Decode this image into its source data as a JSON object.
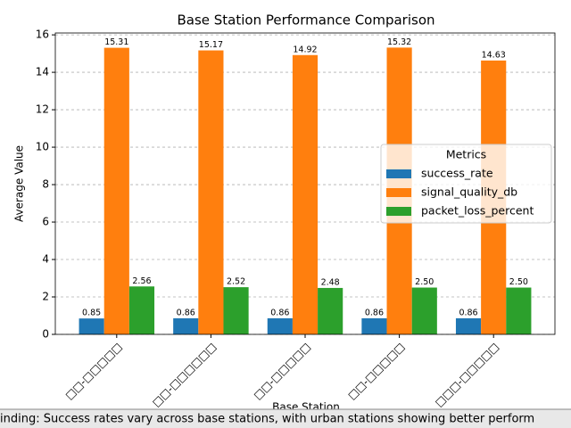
{
  "chart_data": {
    "type": "bar",
    "title": "Base Station Performance Comparison",
    "x_label": "Base Station",
    "y_label": "Average Value",
    "categories": [
      "□□-□□□□□",
      "□□-□□□□□□",
      "□□-□□□□□",
      "□□-□□□□□",
      "□□□-□□□□□"
    ],
    "series": [
      {
        "name": "success_rate",
        "color": "#1f77b4",
        "values": [
          0.85,
          0.86,
          0.86,
          0.86,
          0.86
        ],
        "value_labels": [
          "0.85",
          "0.86",
          "0.86",
          "0.86",
          "0.86"
        ]
      },
      {
        "name": "signal_quality_db",
        "color": "#ff7f0e",
        "values": [
          15.31,
          15.17,
          14.92,
          15.32,
          14.63
        ],
        "value_labels": [
          "15.31",
          "15.17",
          "14.92",
          "15.32",
          "14.63"
        ]
      },
      {
        "name": "packet_loss_percent",
        "color": "#2ca02c",
        "values": [
          2.56,
          2.52,
          2.48,
          2.5,
          2.5
        ],
        "value_labels": [
          "2.56",
          "2.52",
          "2.48",
          "2.50",
          "2.50"
        ]
      }
    ],
    "legend_title": "Metrics",
    "legend": "center right",
    "ylim": [
      0,
      16.1
    ],
    "yticks": [
      0,
      2,
      4,
      6,
      8,
      10,
      12,
      14,
      16
    ],
    "grid": true,
    "annotation": "inding: Success rates vary across base stations, with urban stations showing better perform"
  }
}
